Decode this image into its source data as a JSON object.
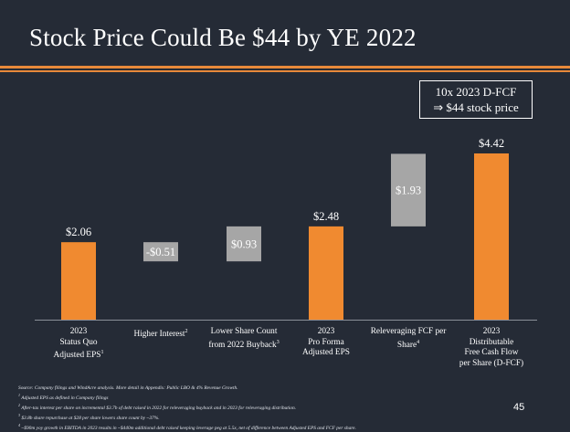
{
  "title": "Stock Price Could Be $44 by YE 2022",
  "callout": {
    "line1": "10x 2023 D-FCF",
    "line2": "⇒ $44 stock price"
  },
  "colors": {
    "background": "#252b36",
    "accent": "#e8893a",
    "gray": "#a6a6a6",
    "bar_orange": "#f08a30"
  },
  "chart_data": {
    "type": "waterfall",
    "title": "",
    "categories": [
      "2023 Status Quo Adjusted EPS",
      "Higher Interest",
      "Lower Share Count from 2022 Buyback",
      "2023 Pro Forma Adjusted EPS",
      "Releveraging FCF per Share",
      "2023 Distributable Free Cash Flow per Share (D-FCF)"
    ],
    "category_lines": [
      {
        "lines": [
          "2023",
          "Status Quo",
          "Adjusted EPS"
        ],
        "sup": "1"
      },
      {
        "lines": [
          "Higher Interest"
        ],
        "sup": "2"
      },
      {
        "lines": [
          "Lower Share Count",
          "from 2022 Buyback"
        ],
        "sup": "3"
      },
      {
        "lines": [
          "2023",
          "Pro Forma",
          "Adjusted EPS"
        ],
        "sup": ""
      },
      {
        "lines": [
          "Releveraging FCF per",
          "Share"
        ],
        "sup": "4"
      },
      {
        "lines": [
          "2023",
          "Distributable",
          "Free Cash Flow",
          "per Share (D-FCF)"
        ],
        "sup": ""
      }
    ],
    "values": [
      2.06,
      -0.51,
      0.93,
      2.48,
      1.93,
      4.42
    ],
    "kinds": [
      "total",
      "delta",
      "delta",
      "total",
      "delta",
      "total"
    ],
    "labels": [
      "$2.06",
      "-$0.51",
      "$0.93",
      "$2.48",
      "$1.93",
      "$4.42"
    ],
    "ylim": [
      0,
      4.42
    ],
    "xlabel": "",
    "ylabel": ""
  },
  "footnotes": [
    {
      "sup": "",
      "text": "Source: Company filings and WindAcre analysis. More detail in Appendix: Public LBO & 4% Revenue Growth."
    },
    {
      "sup": "1",
      "text": "Adjusted EPS as defined in Company filings"
    },
    {
      "sup": "2",
      "text": "After-tax interest per share on incremental $3.7b of debt raised in 2022 for releveraging buyback and in 2023 for releveraging distribution."
    },
    {
      "sup": "3",
      "text": "$3.8b share repurchase at $28 per share lowers share count by ~37%."
    },
    {
      "sup": "4",
      "text": "~$90m yoy growth in EBITDA in 2023 results in ~$440m additional debt raised keeping leverage peg at 5.5x, net of difference between Adjusted EPS and FCF per share."
    }
  ],
  "page_number": "45"
}
